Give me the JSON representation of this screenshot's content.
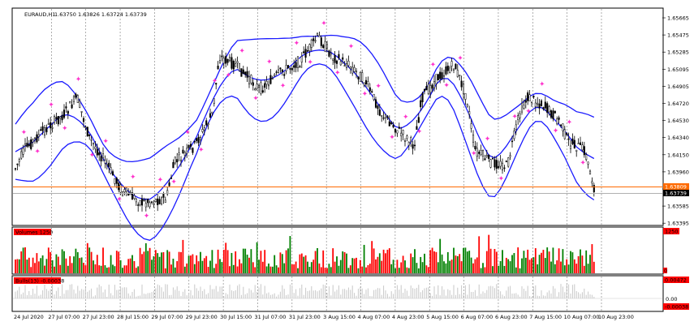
{
  "chart": {
    "title": "EURAUD,H1",
    "ohlc": "1.63750 1.63826 1.63724 1.63739",
    "ask_price": "1.63809",
    "bid_price": "1.63739",
    "price_ticks": [
      "1.65665",
      "1.65475",
      "1.65285",
      "1.65095",
      "1.64905",
      "1.64720",
      "1.64530",
      "1.64340",
      "1.64150",
      "1.63960",
      "1.63775",
      "1.63585",
      "1.63395"
    ],
    "time_ticks": [
      "24 Jul 2020",
      "27 Jul 07:00",
      "27 Jul 23:00",
      "28 Jul 15:00",
      "29 Jul 07:00",
      "29 Jul 23:00",
      "30 Jul 15:00",
      "31 Jul 07:00",
      "31 Jul 23:00",
      "3 Aug 15:00",
      "4 Aug 07:00",
      "4 Aug 23:00",
      "5 Aug 15:00",
      "6 Aug 07:00",
      "6 Aug 23:00",
      "7 Aug 15:00",
      "10 Aug 07:00",
      "10 Aug 23:00"
    ],
    "colors": {
      "candle": "#000000",
      "band": "#1a1aff",
      "fractal": "#ff33cc",
      "ask_line": "#ff6a00",
      "grid": "#7a7a7a",
      "vol_up": "#008000",
      "vol_down": "#ff0000",
      "value_tag": "#ff0000"
    }
  },
  "volumes": {
    "label": "Volumes 1250",
    "value_tag": "1250",
    "zero_tag": "0"
  },
  "bulls": {
    "label": "Bulls(13) -0.00038",
    "top_tag": "0.00472",
    "zero_tag": "0.00",
    "bottom_tag": "-0.00038"
  }
}
